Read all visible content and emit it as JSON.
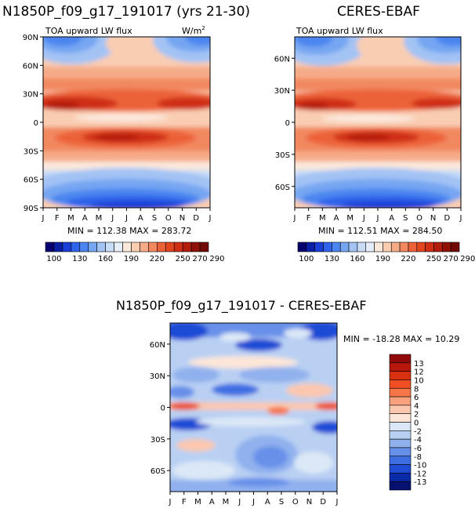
{
  "chart_data": [
    {
      "type": "heatmap",
      "title": "N1850P_f09_g17_191017 (yrs 21-30)",
      "subtitle": "TOA upward LW flux",
      "units_base": "W/m",
      "units_exp": "2",
      "x_ticks": [
        "J",
        "F",
        "M",
        "A",
        "M",
        "J",
        "J",
        "A",
        "S",
        "O",
        "N",
        "D",
        "J"
      ],
      "y_ticks": [
        "90N",
        "60N",
        "30N",
        "0",
        "30S",
        "60S",
        "90S"
      ],
      "y_values": [
        90,
        60,
        30,
        0,
        -30,
        -60,
        -90
      ],
      "stats": "MIN = 112.38  MAX = 283.72",
      "min": 112.38,
      "max": 283.72,
      "colorbar_labels": [
        "100",
        "130",
        "160",
        "190",
        "220",
        "250",
        "270",
        "290"
      ],
      "levels": [
        100,
        110,
        120,
        130,
        140,
        150,
        160,
        170,
        180,
        190,
        200,
        210,
        220,
        230,
        240,
        250,
        260,
        270,
        280,
        290
      ]
    },
    {
      "type": "heatmap",
      "title": "CERES-EBAF",
      "subtitle": "TOA upward LW flux",
      "x_ticks": [
        "J",
        "F",
        "M",
        "A",
        "M",
        "J",
        "J",
        "A",
        "S",
        "O",
        "N",
        "D",
        "J"
      ],
      "y_ticks": [
        "60N",
        "30N",
        "0",
        "30S",
        "60S"
      ],
      "y_values": [
        60,
        30,
        0,
        -30,
        -60
      ],
      "stats": "MIN = 112.51  MAX = 284.50",
      "min": 112.51,
      "max": 284.5,
      "colorbar_labels": [
        "100",
        "130",
        "160",
        "190",
        "220",
        "250",
        "270",
        "290"
      ],
      "levels": [
        100,
        110,
        120,
        130,
        140,
        150,
        160,
        170,
        180,
        190,
        200,
        210,
        220,
        230,
        240,
        250,
        260,
        270,
        280,
        290
      ]
    },
    {
      "type": "heatmap",
      "title": "N1850P_f09_g17_191017 - CERES-EBAF",
      "x_ticks": [
        "J",
        "F",
        "M",
        "A",
        "M",
        "J",
        "J",
        "A",
        "S",
        "O",
        "N",
        "D",
        "J"
      ],
      "y_ticks": [
        "60N",
        "30N",
        "0",
        "30S",
        "60S"
      ],
      "y_values": [
        60,
        30,
        0,
        -30,
        -60
      ],
      "stats": "MIN = -18.28 MAX =  10.29",
      "min": -18.28,
      "max": 10.29,
      "colorbar_labels": [
        "13",
        "12",
        "10",
        "8",
        "6",
        "4",
        "2",
        "0",
        "-2",
        "-4",
        "-6",
        "-8",
        "-10",
        "-12",
        "-13"
      ],
      "levels": [
        13,
        12,
        10,
        8,
        6,
        4,
        2,
        0,
        -2,
        -4,
        -6,
        -8,
        -10,
        -12,
        -13
      ]
    }
  ],
  "colors": {
    "abs_scale": [
      "#08006e",
      "#0a1fa6",
      "#1a3fd6",
      "#2e63ea",
      "#4b86f0",
      "#76a6f2",
      "#a3c3f4",
      "#c8dcf6",
      "#e6eef9",
      "#fbe8dc",
      "#f9cdb2",
      "#f6ab88",
      "#f28860",
      "#ec6238",
      "#e2461f",
      "#cf2f12",
      "#b31d0b",
      "#8f1108",
      "#720905"
    ],
    "diff_scale": [
      "#8f0a08",
      "#b8180b",
      "#d9300f",
      "#ef4f22",
      "#f6764a",
      "#f9a07c",
      "#fbc7ae",
      "#fde6d8",
      "#dce8f7",
      "#b9d0f3",
      "#90b1ee",
      "#6790e9",
      "#3f6ee3",
      "#1f4cd5",
      "#0b2aa8",
      "#06106e"
    ]
  }
}
